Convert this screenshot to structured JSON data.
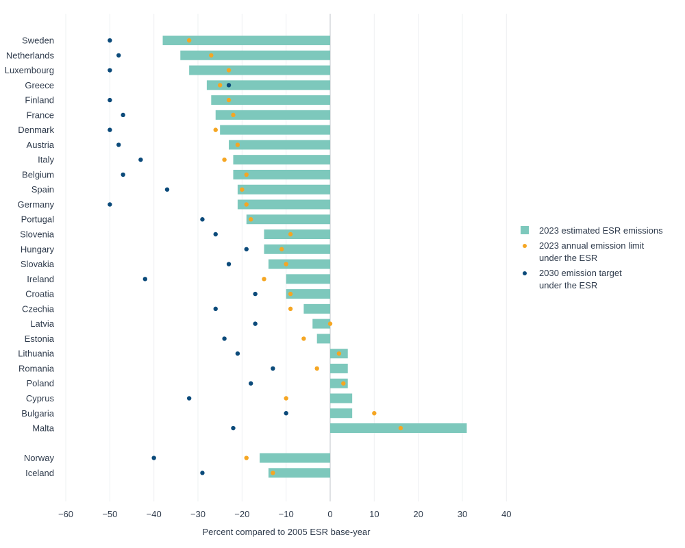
{
  "chart_data": {
    "type": "bar",
    "orientation": "horizontal",
    "xlabel": "Percent compared to 2005 ESR base-year",
    "xlim": [
      -60,
      40
    ],
    "xticks": [
      "−60",
      "−50",
      "−40",
      "−30",
      "−20",
      "−10",
      "0",
      "10",
      "20",
      "30",
      "40"
    ],
    "xtick_values": [
      -60,
      -50,
      -40,
      -30,
      -20,
      -10,
      0,
      10,
      20,
      30,
      40
    ],
    "grid": "vertical",
    "legend_position": "right",
    "categories": [
      "Sweden",
      "Netherlands",
      "Luxembourg",
      "Greece",
      "Finland",
      "France",
      "Denmark",
      "Austria",
      "Italy",
      "Belgium",
      "Spain",
      "Germany",
      "Portugal",
      "Slovenia",
      "Hungary",
      "Slovakia",
      "Ireland",
      "Croatia",
      "Czechia",
      "Latvia",
      "Estonia",
      "Lithuania",
      "Romania",
      "Poland",
      "Cyprus",
      "Bulgaria",
      "Malta",
      "Norway",
      "Iceland"
    ],
    "series": [
      {
        "name": "2023 estimated ESR emissions",
        "mark": "bar",
        "color": "#7dc8bc",
        "values": [
          -38,
          -34,
          -32,
          -28,
          -27,
          -26,
          -25,
          -23,
          -22,
          -22,
          -21,
          -21,
          -19,
          -15,
          -15,
          -14,
          -10,
          -10,
          -6,
          -4,
          -3,
          4,
          4,
          4,
          5,
          5,
          31,
          -16,
          -14
        ]
      },
      {
        "name": "2023 annual emission limit under the ESR",
        "name_lines": [
          "2023 annual emission limit",
          "under the ESR"
        ],
        "mark": "dot",
        "color": "#f5a623",
        "values": [
          -32,
          -27,
          -23,
          -25,
          -23,
          -22,
          -26,
          -21,
          -24,
          -19,
          -20,
          -19,
          -18,
          -9,
          -11,
          -10,
          -15,
          -9,
          -9,
          0,
          -6,
          2,
          -3,
          3,
          -10,
          10,
          16,
          -19,
          -13
        ]
      },
      {
        "name": "2030 emission target under the ESR",
        "name_lines": [
          "2030 emission target",
          "under the ESR"
        ],
        "mark": "dot",
        "color": "#0b4a7a",
        "values": [
          -50,
          -48,
          -50,
          -23,
          -50,
          -47,
          -50,
          -48,
          -43,
          -47,
          -37,
          -50,
          -29,
          -26,
          -19,
          -23,
          -42,
          -17,
          -26,
          -17,
          -24,
          -21,
          -13,
          -18,
          -32,
          -10,
          -22,
          -40,
          -29
        ]
      }
    ]
  }
}
